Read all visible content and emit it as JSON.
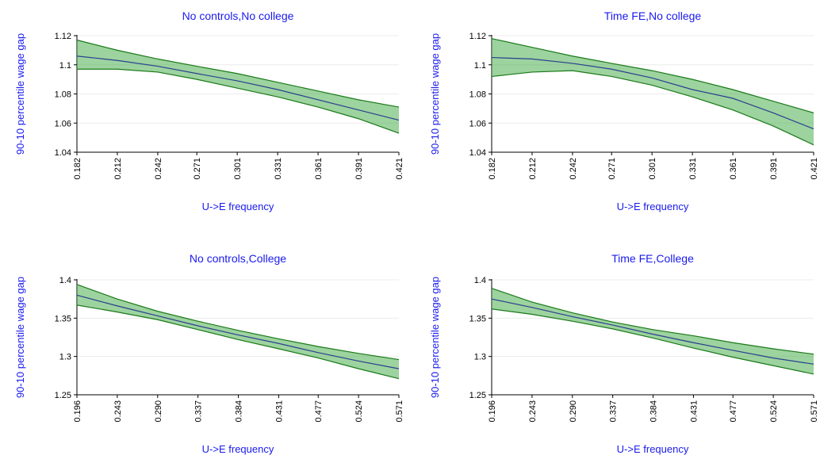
{
  "chart_data": [
    {
      "type": "line",
      "title": "No controls,No college",
      "xlabel": "U->E frequency",
      "ylabel": "90-10 percentile wage gap",
      "x": [
        0.182,
        0.212,
        0.242,
        0.271,
        0.301,
        0.331,
        0.361,
        0.391,
        0.421
      ],
      "xlim": [
        0.182,
        0.421
      ],
      "xticks": [
        0.182,
        0.212,
        0.242,
        0.271,
        0.301,
        0.331,
        0.361,
        0.391,
        0.421
      ],
      "ylim": [
        1.04,
        1.12
      ],
      "yticks": [
        1.04,
        1.06,
        1.08,
        1.1,
        1.12
      ],
      "grid": true,
      "series": [
        {
          "color": "#2a3f8f",
          "values": [
            1.106,
            1.103,
            1.099,
            1.094,
            1.089,
            1.083,
            1.076,
            1.069,
            1.062
          ]
        }
      ],
      "band": {
        "color": "#4caf50",
        "edge_color": "#1a7a1a",
        "upper": [
          1.117,
          1.11,
          1.104,
          1.099,
          1.094,
          1.088,
          1.082,
          1.076,
          1.071
        ],
        "lower": [
          1.097,
          1.097,
          1.095,
          1.09,
          1.084,
          1.078,
          1.071,
          1.063,
          1.053
        ]
      }
    },
    {
      "type": "line",
      "title": "Time FE,No college",
      "xlabel": "U->E frequency",
      "ylabel": "90-10 percentile wage gap",
      "x": [
        0.182,
        0.212,
        0.242,
        0.271,
        0.301,
        0.331,
        0.361,
        0.391,
        0.421
      ],
      "xlim": [
        0.182,
        0.421
      ],
      "xticks": [
        0.182,
        0.212,
        0.242,
        0.271,
        0.301,
        0.331,
        0.361,
        0.391,
        0.421
      ],
      "ylim": [
        1.04,
        1.12
      ],
      "yticks": [
        1.04,
        1.06,
        1.08,
        1.1,
        1.12
      ],
      "grid": true,
      "series": [
        {
          "color": "#2a3f8f",
          "values": [
            1.105,
            1.104,
            1.101,
            1.097,
            1.091,
            1.083,
            1.077,
            1.067,
            1.056
          ]
        }
      ],
      "band": {
        "color": "#4caf50",
        "edge_color": "#1a7a1a",
        "upper": [
          1.118,
          1.112,
          1.106,
          1.101,
          1.096,
          1.09,
          1.083,
          1.075,
          1.067
        ],
        "lower": [
          1.092,
          1.095,
          1.096,
          1.092,
          1.086,
          1.078,
          1.069,
          1.058,
          1.045
        ]
      }
    },
    {
      "type": "line",
      "title": "No controls,College",
      "xlabel": "U->E frequency",
      "ylabel": "90-10 percentile wage gap",
      "x": [
        0.196,
        0.243,
        0.29,
        0.337,
        0.384,
        0.431,
        0.477,
        0.524,
        0.571
      ],
      "xlim": [
        0.196,
        0.571
      ],
      "xticks": [
        0.196,
        0.243,
        {
          "value": 0.29,
          "label": "0.290"
        },
        0.337,
        0.384,
        0.431,
        0.477,
        0.524,
        0.571
      ],
      "ylim": [
        1.25,
        1.4
      ],
      "yticks": [
        1.25,
        1.3,
        1.35,
        1.4
      ],
      "grid": true,
      "series": [
        {
          "color": "#2a3f8f",
          "values": [
            1.38,
            1.366,
            1.353,
            1.34,
            1.328,
            1.317,
            1.305,
            1.294,
            1.284
          ]
        }
      ],
      "band": {
        "color": "#4caf50",
        "edge_color": "#1a7a1a",
        "upper": [
          1.394,
          1.375,
          1.359,
          1.346,
          1.334,
          1.323,
          1.313,
          1.304,
          1.296
        ],
        "lower": [
          1.367,
          1.358,
          1.348,
          1.335,
          1.322,
          1.31,
          1.298,
          1.284,
          1.271
        ]
      }
    },
    {
      "type": "line",
      "title": "Time FE,College",
      "xlabel": "U->E frequency",
      "ylabel": "90-10 percentile wage gap",
      "x": [
        0.196,
        0.243,
        0.29,
        0.337,
        0.384,
        0.431,
        0.477,
        0.524,
        0.571
      ],
      "xlim": [
        0.196,
        0.571
      ],
      "xticks": [
        0.196,
        0.243,
        {
          "value": 0.29,
          "label": "0.290"
        },
        0.337,
        0.384,
        0.431,
        0.477,
        0.524,
        0.571
      ],
      "ylim": [
        1.25,
        1.4
      ],
      "yticks": [
        1.25,
        1.3,
        1.35,
        1.4
      ],
      "grid": true,
      "series": [
        {
          "color": "#2a3f8f",
          "values": [
            1.375,
            1.364,
            1.352,
            1.341,
            1.329,
            1.318,
            1.308,
            1.298,
            1.29
          ]
        }
      ],
      "band": {
        "color": "#4caf50",
        "edge_color": "#1a7a1a",
        "upper": [
          1.389,
          1.371,
          1.357,
          1.345,
          1.335,
          1.327,
          1.318,
          1.31,
          1.303
        ],
        "lower": [
          1.362,
          1.355,
          1.346,
          1.336,
          1.324,
          1.311,
          1.299,
          1.288,
          1.277
        ]
      }
    }
  ]
}
